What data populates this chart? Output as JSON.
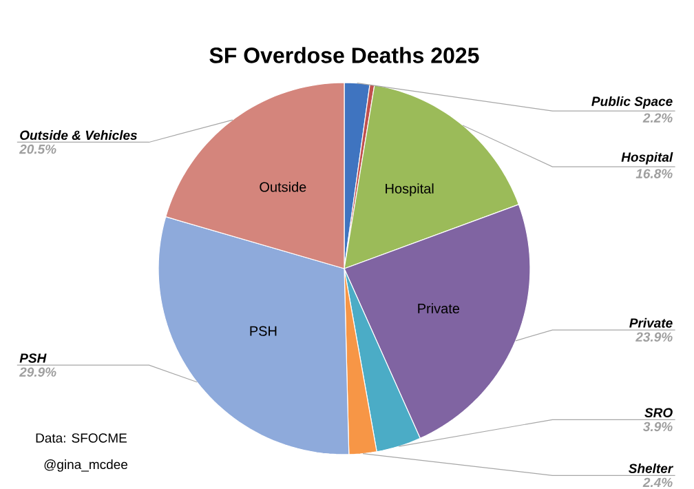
{
  "chart_data": {
    "type": "pie",
    "title": "SF Overdose Deaths 2025",
    "categories": [
      "Public Space",
      null,
      "Hospital",
      "Private",
      "SRO",
      "Shelter",
      "PSH",
      "Outside & Vehicles"
    ],
    "values": [
      2.2,
      0.4,
      16.8,
      23.9,
      3.9,
      2.4,
      29.9,
      20.5
    ],
    "value_labels": [
      "2.2%",
      null,
      "16.8%",
      "23.9%",
      "3.9%",
      "2.4%",
      "29.9%",
      "20.5%"
    ],
    "colors": [
      "#3f74c0",
      "#c0504d",
      "#9bbb59",
      "#8064a2",
      "#4bacc6",
      "#f79646",
      "#8eaadb",
      "#d4857c"
    ],
    "annotations": [
      {
        "text": "Hospital",
        "x": "Hospital"
      },
      {
        "text": "Private",
        "x": "Private"
      },
      {
        "text": "PSH",
        "x": "PSH"
      },
      {
        "text": "Outside",
        "x": "Outside & Vehicles"
      },
      "Data: SFOCME",
      "@gina_mcdee"
    ]
  }
}
